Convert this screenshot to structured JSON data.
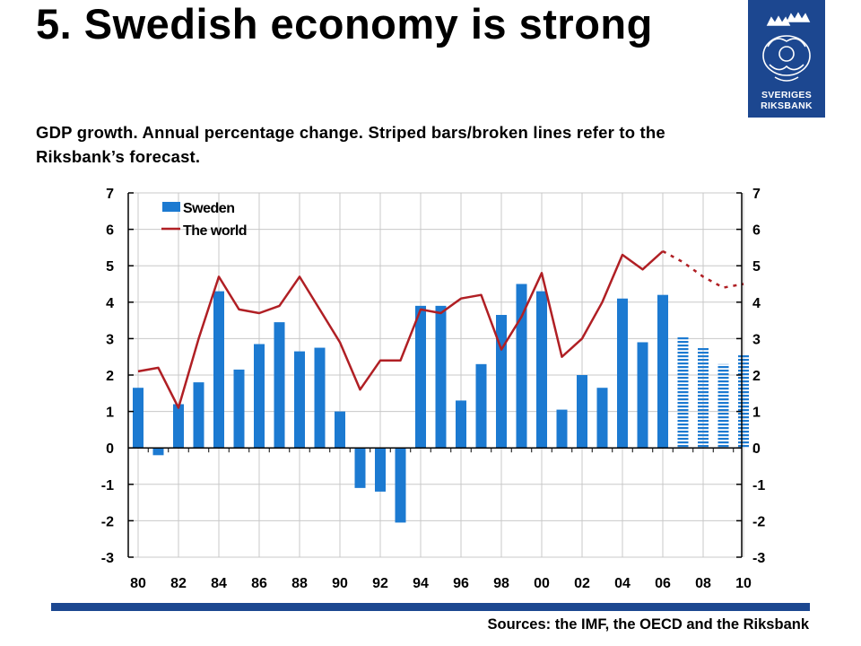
{
  "title": "5. Swedish economy is strong",
  "subtitle": "GDP growth. Annual percentage change. Striped bars/broken lines refer to the Riksbank’s forecast.",
  "logo": {
    "name": "Sveriges Riksbank logo",
    "line1": "SVERIGES",
    "line2": "RIKSBANK"
  },
  "source": "Sources: the IMF, the OECD and the Riksbank",
  "colors": {
    "sweden": "#1c7ad1",
    "world": "#b01f24",
    "footer_bar": "#1c4790",
    "logo_bg": "#1c4790"
  },
  "chart_data": {
    "type": "bar",
    "title": "",
    "xlabel": "",
    "ylabel": "",
    "ylim": [
      -3,
      7
    ],
    "yticks": [
      "7",
      "6",
      "5",
      "4",
      "3",
      "2",
      "1",
      "0",
      "-1",
      "-2",
      "-3"
    ],
    "grid": true,
    "legend_position": "top-left",
    "x": [
      1980,
      1981,
      1982,
      1983,
      1984,
      1985,
      1986,
      1987,
      1988,
      1989,
      1990,
      1991,
      1992,
      1993,
      1994,
      1995,
      1996,
      1997,
      1998,
      1999,
      2000,
      2001,
      2002,
      2003,
      2004,
      2005,
      2006,
      2007,
      2008,
      2009,
      2010
    ],
    "xtick_labels": [
      "80",
      "82",
      "84",
      "86",
      "88",
      "90",
      "92",
      "94",
      "96",
      "98",
      "00",
      "02",
      "04",
      "06",
      "08",
      "10"
    ],
    "forecast_from": 2007,
    "series": [
      {
        "name": "Sweden",
        "type": "bar",
        "values": [
          1.65,
          -0.2,
          1.2,
          1.8,
          4.3,
          2.15,
          2.85,
          3.45,
          2.65,
          2.75,
          1.0,
          -1.1,
          -1.2,
          -2.05,
          3.9,
          3.9,
          1.3,
          2.3,
          3.65,
          4.5,
          4.3,
          1.05,
          2.0,
          1.65,
          4.1,
          2.9,
          4.2,
          3.05,
          2.75,
          2.3,
          2.55
        ]
      },
      {
        "name": "The world",
        "type": "line",
        "values": [
          2.1,
          2.2,
          1.1,
          3.0,
          4.7,
          3.8,
          3.7,
          3.9,
          4.7,
          3.8,
          2.9,
          1.6,
          2.4,
          2.4,
          3.8,
          3.7,
          4.1,
          4.2,
          2.7,
          3.6,
          4.8,
          2.5,
          3.0,
          4.0,
          5.3,
          4.9,
          5.4,
          5.1,
          4.7,
          4.4,
          4.5
        ]
      }
    ]
  }
}
